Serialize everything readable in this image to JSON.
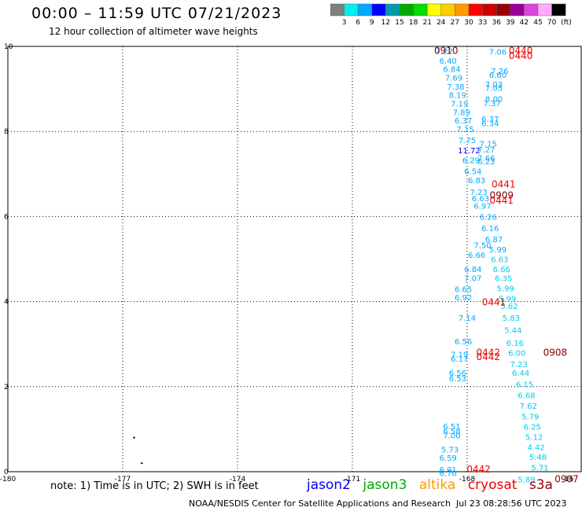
{
  "header": {
    "title": "00:00 – 11:59 UTC 07/21/2023",
    "subtitle": "12 hour collection of altimeter wave heights"
  },
  "colorbar": {
    "colors": [
      "#7f7f7f",
      "#00eeee",
      "#00aaff",
      "#0000ff",
      "#009ca8",
      "#00aa00",
      "#00dd00",
      "#ffff00",
      "#ffcc00",
      "#ff9900",
      "#ff0000",
      "#cc0000",
      "#990000",
      "#990099",
      "#dd44dd",
      "#ffaaff",
      "#000000"
    ],
    "labels": [
      "3",
      "6",
      "9",
      "12",
      "15",
      "18",
      "21",
      "24",
      "27",
      "30",
      "33",
      "36",
      "39",
      "42",
      "45",
      "70"
    ],
    "unit": "(ft)"
  },
  "map": {
    "lon_range": [
      -180,
      -165
    ],
    "lat_range": [
      0,
      10
    ],
    "lon_ticks": [
      "-180",
      "-177",
      "-174",
      "-171",
      "-168",
      "-16"
    ],
    "lat_ticks": [
      "0",
      "2",
      "4",
      "6",
      "8",
      "10"
    ],
    "wave_heights": [
      {
        "label": "7.22",
        "lon": -168.6,
        "lat": 9.9,
        "c": "#00aaff"
      },
      {
        "label": "6.40",
        "lon": -168.5,
        "lat": 9.67,
        "c": "#00aaff"
      },
      {
        "label": "6.84",
        "lon": -168.4,
        "lat": 9.47,
        "c": "#00aaff"
      },
      {
        "label": "7.69",
        "lon": -168.35,
        "lat": 9.27,
        "c": "#00aaff"
      },
      {
        "label": "7.38",
        "lon": -168.3,
        "lat": 9.06,
        "c": "#00aaff"
      },
      {
        "label": "8.19",
        "lon": -168.25,
        "lat": 8.86,
        "c": "#00aaff"
      },
      {
        "label": "7.19",
        "lon": -168.2,
        "lat": 8.66,
        "c": "#00aaff"
      },
      {
        "label": "7.89",
        "lon": -168.15,
        "lat": 8.46,
        "c": "#00aaff"
      },
      {
        "label": "6.37",
        "lon": -168.1,
        "lat": 8.26,
        "c": "#00aaff"
      },
      {
        "label": "7.15",
        "lon": -168.05,
        "lat": 8.06,
        "c": "#00aaff"
      },
      {
        "label": "7.75",
        "lon": -168.0,
        "lat": 7.8,
        "c": "#00aaff"
      },
      {
        "label": "11.72",
        "lon": -167.95,
        "lat": 7.56,
        "c": "#0000ff"
      },
      {
        "label": "6.29",
        "lon": -167.9,
        "lat": 7.33,
        "c": "#00aaff"
      },
      {
        "label": "6.54",
        "lon": -167.85,
        "lat": 7.07,
        "c": "#00aaff"
      },
      {
        "label": "6.83",
        "lon": -167.75,
        "lat": 6.86,
        "c": "#00aaff"
      },
      {
        "label": "7.23",
        "lon": -167.7,
        "lat": 6.58,
        "c": "#00aaff"
      },
      {
        "label": "6.63",
        "lon": -167.65,
        "lat": 6.43,
        "c": "#00aaff"
      },
      {
        "label": "6.97",
        "lon": -167.6,
        "lat": 6.26,
        "c": "#00aaff"
      },
      {
        "label": "6.26",
        "lon": -167.45,
        "lat": 6.0,
        "c": "#00aaff"
      },
      {
        "label": "6.16",
        "lon": -167.4,
        "lat": 5.73,
        "c": "#00aaff"
      },
      {
        "label": "6.87",
        "lon": -167.3,
        "lat": 5.47,
        "c": "#00aaff"
      },
      {
        "label": "7.50",
        "lon": -167.6,
        "lat": 5.33,
        "c": "#00aaff"
      },
      {
        "label": "5.99",
        "lon": -167.2,
        "lat": 5.23,
        "c": "#00aaff"
      },
      {
        "label": "6.66",
        "lon": -167.75,
        "lat": 5.1,
        "c": "#00aaff"
      },
      {
        "label": "6.63",
        "lon": -167.15,
        "lat": 5.0,
        "c": "#00ccee"
      },
      {
        "label": "6.84",
        "lon": -167.85,
        "lat": 4.77,
        "c": "#00aaff"
      },
      {
        "label": "6.66",
        "lon": -167.1,
        "lat": 4.77,
        "c": "#00ccee"
      },
      {
        "label": "7.07",
        "lon": -167.85,
        "lat": 4.56,
        "c": "#00aaff"
      },
      {
        "label": "6.35",
        "lon": -167.05,
        "lat": 4.56,
        "c": "#00ccee"
      },
      {
        "label": "5.99",
        "lon": -167.0,
        "lat": 4.32,
        "c": "#00ccee"
      },
      {
        "label": "6.65",
        "lon": -168.1,
        "lat": 4.3,
        "c": "#00aaff"
      },
      {
        "label": "6.92",
        "lon": -168.1,
        "lat": 4.1,
        "c": "#00aaff"
      },
      {
        "label": "5.99",
        "lon": -166.95,
        "lat": 4.08,
        "c": "#00ccee"
      },
      {
        "label": "5.62",
        "lon": -166.9,
        "lat": 3.9,
        "c": "#00ccee"
      },
      {
        "label": "7.14",
        "lon": -168.0,
        "lat": 3.62,
        "c": "#00aaff"
      },
      {
        "label": "5.83",
        "lon": -166.85,
        "lat": 3.62,
        "c": "#00ccee"
      },
      {
        "label": "5.44",
        "lon": -166.8,
        "lat": 3.34,
        "c": "#00ccee"
      },
      {
        "label": "6.56",
        "lon": -168.1,
        "lat": 3.07,
        "c": "#00aaff"
      },
      {
        "label": "6.16",
        "lon": -166.75,
        "lat": 3.03,
        "c": "#00ccee"
      },
      {
        "label": "7.19",
        "lon": -168.2,
        "lat": 2.76,
        "c": "#00aaff"
      },
      {
        "label": "6.00",
        "lon": -166.7,
        "lat": 2.8,
        "c": "#00ccee"
      },
      {
        "label": "6.17",
        "lon": -168.2,
        "lat": 2.66,
        "c": "#00aaff"
      },
      {
        "label": "7.23",
        "lon": -166.65,
        "lat": 2.53,
        "c": "#00ccee"
      },
      {
        "label": "6.56",
        "lon": -168.25,
        "lat": 2.33,
        "c": "#00aaff"
      },
      {
        "label": "6.44",
        "lon": -166.6,
        "lat": 2.33,
        "c": "#00ccee"
      },
      {
        "label": "6.53",
        "lon": -168.25,
        "lat": 2.2,
        "c": "#00aaff"
      },
      {
        "label": "6.15",
        "lon": -166.5,
        "lat": 2.06,
        "c": "#00ccee"
      },
      {
        "label": "6.68",
        "lon": -166.45,
        "lat": 1.8,
        "c": "#00ccee"
      },
      {
        "label": "7.62",
        "lon": -166.4,
        "lat": 1.55,
        "c": "#00ccee"
      },
      {
        "label": "5.79",
        "lon": -166.35,
        "lat": 1.3,
        "c": "#00ccee"
      },
      {
        "label": "6.51",
        "lon": -168.4,
        "lat": 1.07,
        "c": "#00aaff"
      },
      {
        "label": "6.25",
        "lon": -166.3,
        "lat": 1.06,
        "c": "#00ccee"
      },
      {
        "label": "6.58",
        "lon": -168.4,
        "lat": 0.96,
        "c": "#00aaff"
      },
      {
        "label": "7.00",
        "lon": -168.4,
        "lat": 0.86,
        "c": "#00aaff"
      },
      {
        "label": "5.12",
        "lon": -166.25,
        "lat": 0.82,
        "c": "#00ccee"
      },
      {
        "label": "4.42",
        "lon": -166.2,
        "lat": 0.58,
        "c": "#00ccee"
      },
      {
        "label": "5.73",
        "lon": -168.45,
        "lat": 0.53,
        "c": "#00aaff"
      },
      {
        "label": "6.59",
        "lon": -168.5,
        "lat": 0.33,
        "c": "#00aaff"
      },
      {
        "label": "5.48",
        "lon": -166.15,
        "lat": 0.35,
        "c": "#00ccee"
      },
      {
        "label": "5.71",
        "lon": -166.1,
        "lat": 0.1,
        "c": "#00ccee"
      },
      {
        "label": "6.91",
        "lon": -168.5,
        "lat": 0.06,
        "c": "#00aaff"
      },
      {
        "label": "6.70",
        "lon": -168.5,
        "lat": -0.03,
        "c": "#00aaff"
      },
      {
        "label": "5.89",
        "lon": -166.45,
        "lat": -0.18,
        "c": "#00ccee"
      },
      {
        "label": "7.06",
        "lon": -167.2,
        "lat": 9.88,
        "c": "#00aaff"
      },
      {
        "label": "7.26",
        "lon": -167.15,
        "lat": 9.43,
        "c": "#00aaff"
      },
      {
        "label": "6.60",
        "lon": -167.2,
        "lat": 9.33,
        "c": "#00aaff"
      },
      {
        "label": "7.03",
        "lon": -167.3,
        "lat": 9.11,
        "c": "#00aaff"
      },
      {
        "label": "7.05",
        "lon": -167.3,
        "lat": 9.03,
        "c": "#00aaff"
      },
      {
        "label": "8.00",
        "lon": -167.3,
        "lat": 8.77,
        "c": "#00aaff"
      },
      {
        "label": "7.37",
        "lon": -167.35,
        "lat": 8.67,
        "c": "#00aaff"
      },
      {
        "label": "6.37",
        "lon": -167.4,
        "lat": 8.3,
        "c": "#00aaff"
      },
      {
        "label": "6.34",
        "lon": -167.4,
        "lat": 8.2,
        "c": "#00aaff"
      },
      {
        "label": "7.15",
        "lon": -167.45,
        "lat": 7.72,
        "c": "#00aaff"
      },
      {
        "label": "7.27",
        "lon": -167.5,
        "lat": 7.58,
        "c": "#00aaff"
      },
      {
        "label": "7.66",
        "lon": -167.5,
        "lat": 7.38,
        "c": "#00aaff"
      },
      {
        "label": "6.23",
        "lon": -167.5,
        "lat": 7.3,
        "c": "#00aaff"
      },
      {
        "label": "0910",
        "lon": -168.55,
        "lat": 9.9,
        "c": "#880000"
      },
      {
        "label": "0440",
        "lon": -166.6,
        "lat": 9.9,
        "c": "#ee0000"
      },
      {
        "label": "0440",
        "lon": -166.6,
        "lat": 9.78,
        "c": "#ee0000"
      },
      {
        "label": "0441",
        "lon": -167.05,
        "lat": 6.76,
        "c": "#ee0000"
      },
      {
        "label": "0909",
        "lon": -167.1,
        "lat": 6.5,
        "c": "#880000"
      },
      {
        "label": "0441",
        "lon": -167.1,
        "lat": 6.38,
        "c": "#ee0000"
      },
      {
        "label": "0441",
        "lon": -167.3,
        "lat": 3.98,
        "c": "#ee0000"
      },
      {
        "label": "0442",
        "lon": -167.45,
        "lat": 2.8,
        "c": "#ee0000"
      },
      {
        "label": "0442",
        "lon": -167.45,
        "lat": 2.7,
        "c": "#ee0000"
      },
      {
        "label": "0908",
        "lon": -165.7,
        "lat": 2.8,
        "c": "#880000"
      },
      {
        "label": "0442",
        "lon": -167.7,
        "lat": 0.06,
        "c": "#ee0000"
      },
      {
        "label": "0907",
        "lon": -165.4,
        "lat": -0.18,
        "c": "#880000"
      }
    ],
    "dots": [
      {
        "lon": -176.7,
        "lat": 0.8
      },
      {
        "lon": -176.5,
        "lat": 0.2
      }
    ]
  },
  "note": "note:  1) Time is in UTC; 2) SWH is in feet",
  "legend": [
    {
      "label": "jason2",
      "color": "#0000ee"
    },
    {
      "label": "jason3",
      "color": "#00aa00"
    },
    {
      "label": "altika",
      "color": "#ff9900"
    },
    {
      "label": "cryosat",
      "color": "#ee0000"
    },
    {
      "label": "s3a",
      "color": "#990000"
    }
  ],
  "footer": {
    "credit": "NOAA/NESDIS Center for Satellite Applications and Research",
    "timestamp": "Jul 23 08:28:56 UTC 2023"
  }
}
